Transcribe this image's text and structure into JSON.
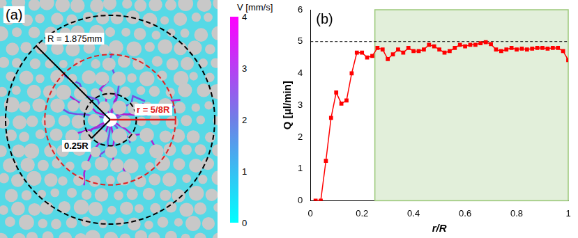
{
  "panel_a": {
    "label": "(a)",
    "annotations": {
      "outer_radius": "R = 1.875mm",
      "inner_radius": "0.25R",
      "mid_radius": "r = 5/8R"
    },
    "colorbar": {
      "title": "V [mm/s]",
      "range": [
        0,
        4
      ],
      "ticks": [
        0,
        1,
        2,
        3,
        4
      ]
    }
  },
  "chart_data": {
    "type": "line",
    "label": "(b)",
    "x_label": "r/R",
    "y_label": "Q [μl/min]",
    "x": [
      0.02,
      0.04,
      0.06,
      0.08,
      0.1,
      0.12,
      0.14,
      0.16,
      0.18,
      0.2,
      0.22,
      0.24,
      0.26,
      0.28,
      0.3,
      0.32,
      0.34,
      0.36,
      0.38,
      0.4,
      0.42,
      0.44,
      0.46,
      0.48,
      0.5,
      0.52,
      0.54,
      0.56,
      0.58,
      0.6,
      0.62,
      0.64,
      0.66,
      0.68,
      0.7,
      0.72,
      0.74,
      0.76,
      0.78,
      0.8,
      0.82,
      0.84,
      0.86,
      0.88,
      0.9,
      0.92,
      0.94,
      0.96,
      0.98,
      1.0
    ],
    "values": [
      0,
      0,
      1.25,
      2.6,
      3.4,
      3.05,
      3.15,
      4.0,
      4.65,
      4.65,
      4.5,
      4.55,
      4.8,
      4.75,
      4.45,
      4.6,
      4.75,
      4.65,
      4.8,
      4.7,
      4.7,
      4.75,
      4.9,
      4.85,
      4.75,
      4.65,
      4.7,
      4.8,
      4.9,
      4.85,
      4.9,
      4.9,
      4.95,
      4.98,
      4.92,
      4.75,
      4.7,
      4.75,
      4.8,
      4.75,
      4.78,
      4.75,
      4.78,
      4.8,
      4.8,
      4.78,
      4.8,
      4.8,
      4.7,
      4.42
    ],
    "color": "#ff0000",
    "marker": "square",
    "xlim": [
      0,
      1
    ],
    "xticks": [
      0,
      0.2,
      0.4,
      0.6,
      0.8,
      1
    ],
    "ylim": [
      0,
      6
    ],
    "yticks": [
      0,
      1,
      2,
      3,
      4,
      5,
      6
    ],
    "grid": false,
    "reference_line": {
      "y": 5,
      "color": "#000000",
      "line_style": "dashed"
    },
    "shaded_region": {
      "x": [
        0.25,
        1
      ],
      "color": "#e2efda"
    }
  }
}
